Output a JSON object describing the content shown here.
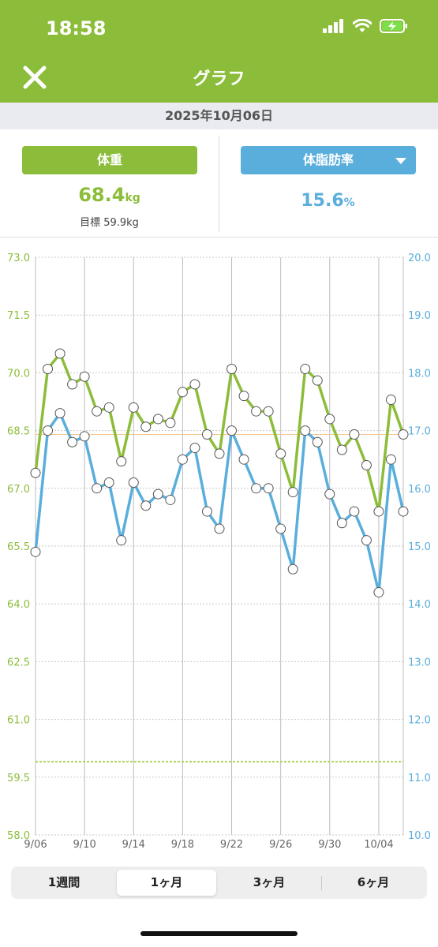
{
  "status_bar": {
    "time": "18:58"
  },
  "header": {
    "title": "グラフ",
    "close_icon": "close-icon"
  },
  "date_bar": {
    "date": "2025年10月06日"
  },
  "weight_panel": {
    "button_label": "体重",
    "value": "68.4",
    "unit": "kg",
    "goal_label": "目標 59.9kg",
    "color": "#8cbd3a"
  },
  "fat_panel": {
    "button_label": "体脂肪率",
    "value": "15.6",
    "unit": "%",
    "color": "#5aaedc"
  },
  "chart_data": {
    "type": "line",
    "x": [
      "9/06",
      "9/07",
      "9/08",
      "9/09",
      "9/10",
      "9/11",
      "9/12",
      "9/13",
      "9/14",
      "9/15",
      "9/16",
      "9/17",
      "9/18",
      "9/19",
      "9/20",
      "9/21",
      "9/22",
      "9/23",
      "9/24",
      "9/25",
      "9/26",
      "9/27",
      "9/28",
      "9/29",
      "9/30",
      "10/01",
      "10/02",
      "10/03",
      "10/04",
      "10/05",
      "10/06"
    ],
    "xticks": [
      "9/06",
      "9/10",
      "9/14",
      "9/18",
      "9/22",
      "9/26",
      "9/30",
      "10/04"
    ],
    "left_axis": {
      "ylim": [
        58.0,
        73.0
      ],
      "ticks": [
        "58.0",
        "59.5",
        "61.0",
        "62.5",
        "64.0",
        "65.5",
        "67.0",
        "68.5",
        "70.0",
        "71.5",
        "73.0"
      ],
      "color": "#8cbd3a"
    },
    "right_axis": {
      "ylim": [
        10.0,
        20.0
      ],
      "ticks": [
        "10.0",
        "11.0",
        "12.0",
        "13.0",
        "14.0",
        "15.0",
        "16.0",
        "17.0",
        "18.0",
        "19.0",
        "20.0"
      ],
      "color": "#5aaedc"
    },
    "series": [
      {
        "axis": "left",
        "color": "#8cbd3a",
        "values": [
          67.4,
          70.1,
          70.5,
          69.7,
          69.9,
          69.0,
          69.1,
          67.7,
          69.1,
          68.6,
          68.8,
          68.7,
          69.5,
          69.7,
          68.4,
          67.9,
          70.1,
          69.4,
          69.0,
          69.0,
          67.9,
          66.9,
          70.1,
          69.8,
          68.8,
          68.0,
          68.4,
          67.6,
          66.4,
          69.3,
          68.4
        ]
      },
      {
        "axis": "right",
        "color": "#5aaedc",
        "values": [
          14.9,
          17.0,
          17.3,
          16.8,
          16.9,
          16.0,
          16.1,
          15.1,
          16.1,
          15.7,
          15.9,
          15.8,
          16.5,
          16.7,
          15.6,
          15.3,
          17.0,
          16.5,
          16.0,
          16.0,
          15.3,
          14.6,
          17.0,
          16.8,
          15.9,
          15.4,
          15.6,
          15.1,
          14.2,
          16.5,
          15.6
        ]
      }
    ],
    "goal_line": {
      "axis": "left",
      "value": 59.9,
      "color": "#a9d15a"
    },
    "grid": true
  },
  "period_tabs": [
    {
      "label": "1週間",
      "active": false
    },
    {
      "label": "1ヶ月",
      "active": true
    },
    {
      "label": "3ヶ月",
      "active": false
    },
    {
      "label": "6ヶ月",
      "active": false
    }
  ]
}
